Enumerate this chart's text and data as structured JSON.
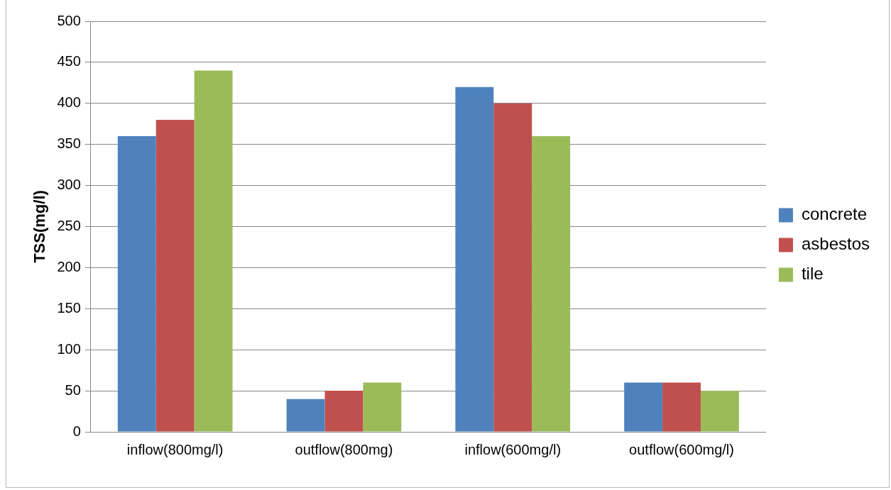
{
  "chart_data": {
    "type": "bar",
    "ylabel": "TSS(mg/l)",
    "categories": [
      "inflow(800mg/l)",
      "outflow(800mg)",
      "inflow(600mg/l)",
      "outflow(600mg/l)"
    ],
    "series": [
      {
        "name": "concrete",
        "color": "#4f81bd",
        "values": [
          360,
          40,
          420,
          60
        ]
      },
      {
        "name": "asbestos",
        "color": "#c0504d",
        "values": [
          380,
          50,
          400,
          60
        ]
      },
      {
        "name": "tile",
        "color": "#9bbb59",
        "values": [
          440,
          60,
          360,
          50
        ]
      }
    ],
    "ylim": [
      0,
      500
    ],
    "yticks": [
      0,
      50,
      100,
      150,
      200,
      250,
      300,
      350,
      400,
      450,
      500
    ],
    "grid": "y",
    "legend": "right"
  }
}
